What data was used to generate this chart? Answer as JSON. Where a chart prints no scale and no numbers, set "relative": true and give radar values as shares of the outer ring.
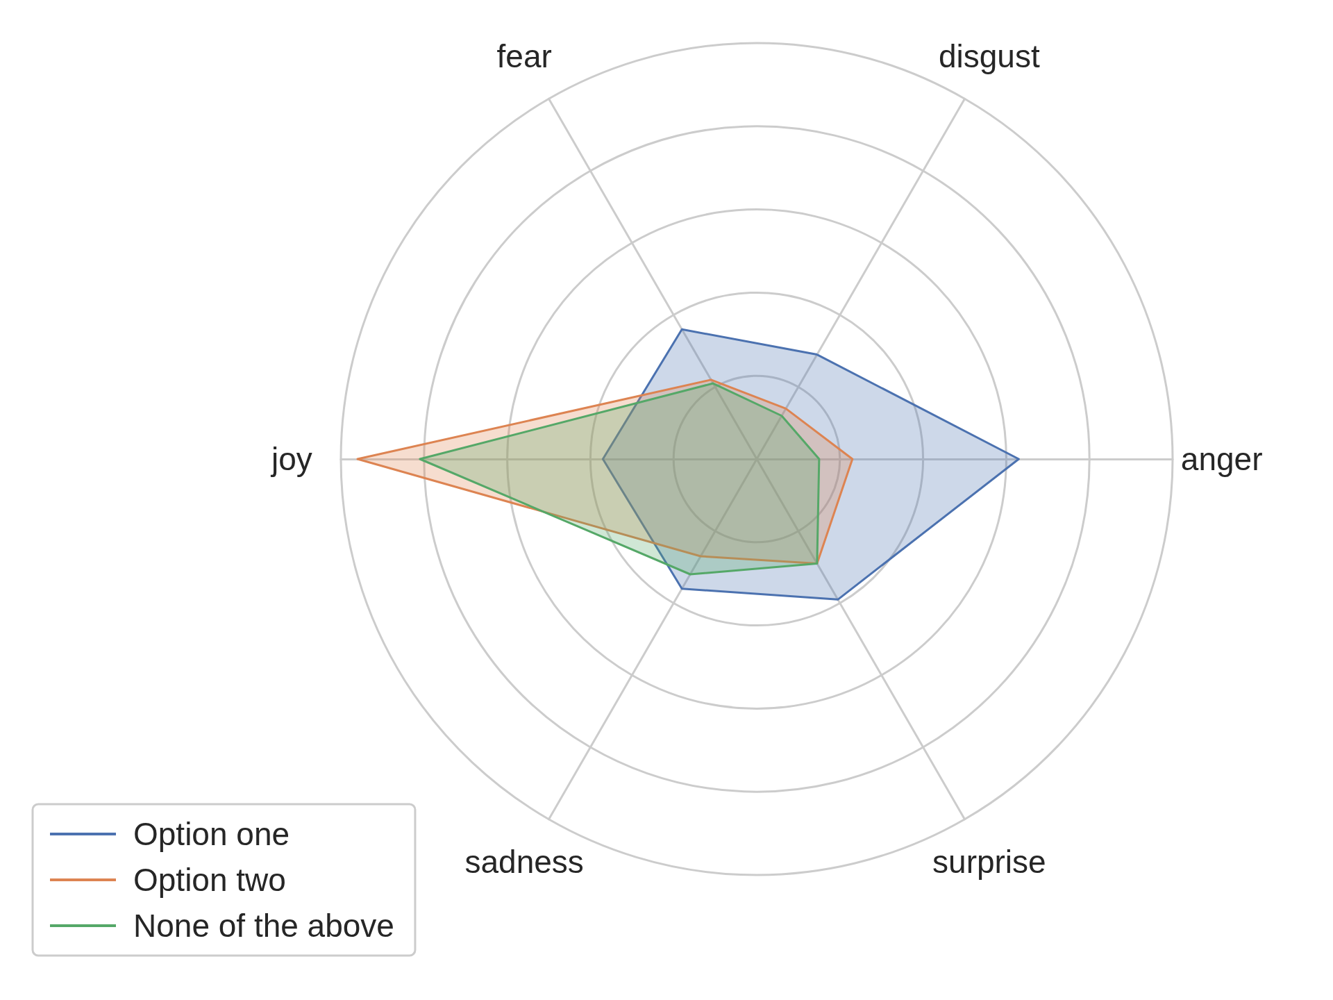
{
  "chart_data": {
    "type": "radar",
    "relative": true,
    "categories": [
      "disgust",
      "anger",
      "surprise",
      "sadness",
      "joy",
      "fear"
    ],
    "series": [
      {
        "name": "Option one",
        "color": "#4c72b0",
        "values": [
          0.29,
          0.63,
          0.39,
          0.36,
          0.37,
          0.36
        ]
      },
      {
        "name": "Option two",
        "color": "#dd8452",
        "values": [
          0.14,
          0.23,
          0.29,
          0.27,
          0.96,
          0.22
        ]
      },
      {
        "name": "None of the above",
        "color": "#55a868",
        "values": [
          0.12,
          0.15,
          0.29,
          0.32,
          0.81,
          0.21
        ]
      }
    ],
    "grid": true,
    "legend": "bottom left"
  }
}
